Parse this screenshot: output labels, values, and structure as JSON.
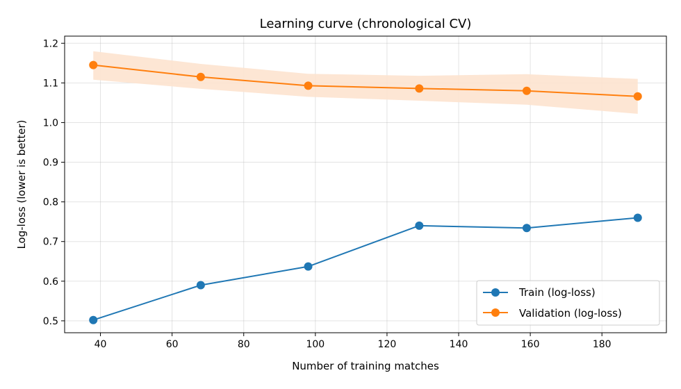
{
  "chart_data": {
    "type": "line",
    "title": "Learning curve (chronological CV)",
    "xlabel": "Number of training matches",
    "ylabel": "Log-loss (lower is better)",
    "x": [
      38,
      68,
      98,
      129,
      159,
      190
    ],
    "xlim": [
      30,
      198
    ],
    "ylim": [
      0.47,
      1.218
    ],
    "xticks": [
      40,
      60,
      80,
      100,
      120,
      140,
      160,
      180
    ],
    "yticks": [
      0.5,
      0.6,
      0.7,
      0.8,
      0.9,
      1.0,
      1.1,
      1.2
    ],
    "xtick_labels": [
      "40",
      "60",
      "80",
      "100",
      "120",
      "140",
      "160",
      "180"
    ],
    "ytick_labels": [
      "0.5",
      "0.6",
      "0.7",
      "0.8",
      "0.9",
      "1.0",
      "1.1",
      "1.2"
    ],
    "grid": true,
    "legend_position": "lower-right",
    "series": [
      {
        "name": "Train (log-loss)",
        "color": "#1f77b4",
        "values": [
          0.502,
          0.59,
          0.637,
          0.74,
          0.734,
          0.76
        ]
      },
      {
        "name": "Validation (log-loss)",
        "color": "#ff7f0e",
        "values": [
          1.145,
          1.115,
          1.093,
          1.086,
          1.08,
          1.066
        ],
        "band_lower": [
          1.108,
          1.085,
          1.065,
          1.055,
          1.045,
          1.022
        ],
        "band_upper": [
          1.18,
          1.148,
          1.123,
          1.118,
          1.122,
          1.11
        ],
        "band_color": "#fde3cf"
      }
    ]
  }
}
